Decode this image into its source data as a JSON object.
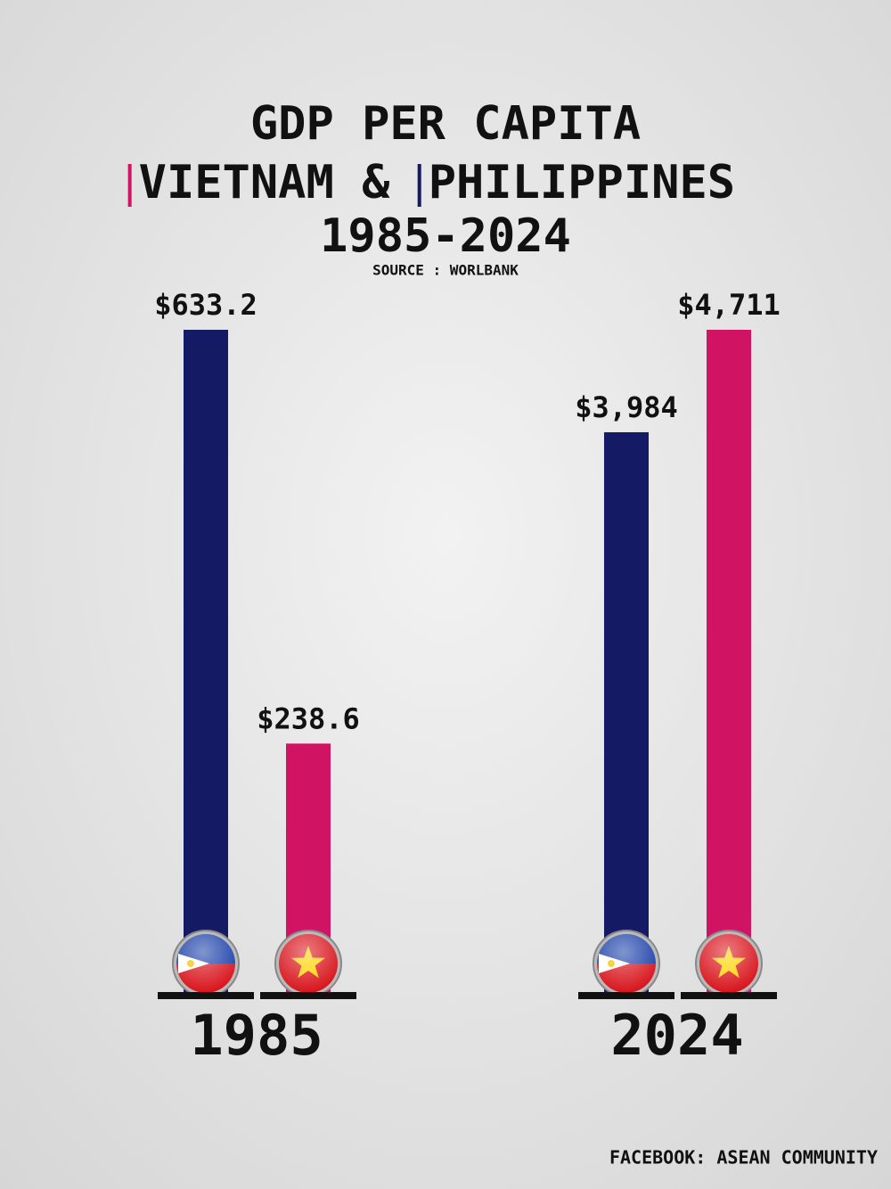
{
  "chart_data": {
    "type": "bar",
    "title": "GDP PER CAPITA",
    "legend_joiner": "&",
    "subtitle": "1985-2024",
    "source": "SOURCE : WORLBANK",
    "footer": "FACEBOOK: ASEAN COMMUNITY",
    "categories": [
      "1985",
      "2024"
    ],
    "series": [
      {
        "name": "VIETNAM",
        "color": "#d01463",
        "values": [
          238.6,
          4711
        ],
        "value_labels": [
          "$238.6",
          "$4,711"
        ]
      },
      {
        "name": "PHILIPPINES",
        "color": "#141a63",
        "values": [
          633.2,
          3984
        ],
        "value_labels": [
          "$633.2",
          "$3,984"
        ]
      }
    ]
  }
}
